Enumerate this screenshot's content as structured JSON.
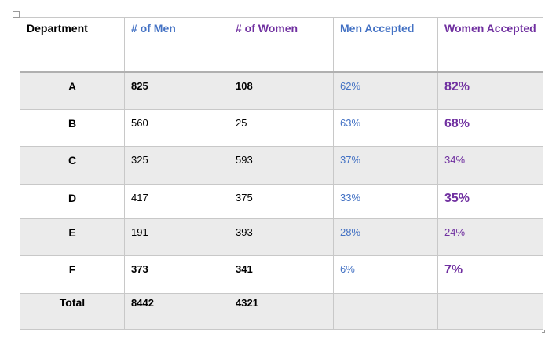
{
  "table": {
    "headers": [
      "Department",
      "# of Men",
      "# of Women",
      "Men Accepted",
      "Women Accepted"
    ],
    "rows": [
      {
        "dept": "A",
        "men": "825",
        "women": "108",
        "men_accepted": "62%",
        "women_accepted": "82%"
      },
      {
        "dept": "B",
        "men": "560",
        "women": "25",
        "men_accepted": "63%",
        "women_accepted": "68%"
      },
      {
        "dept": "C",
        "men": "325",
        "women": "593",
        "men_accepted": "37%",
        "women_accepted": "34%"
      },
      {
        "dept": "D",
        "men": "417",
        "women": "375",
        "men_accepted": "33%",
        "women_accepted": "35%"
      },
      {
        "dept": "E",
        "men": "191",
        "women": "393",
        "men_accepted": "28%",
        "women_accepted": "24%"
      },
      {
        "dept": "F",
        "men": "373",
        "women": "341",
        "men_accepted": "6%",
        "women_accepted": "7%"
      }
    ],
    "total": {
      "label": "Total",
      "men": "8442",
      "women": "4321",
      "men_accepted": "",
      "women_accepted": ""
    }
  },
  "colors": {
    "men_header": "#4472c4",
    "women_header": "#7030a0",
    "shaded_row": "#ebebeb",
    "border": "#c8c8c8"
  }
}
